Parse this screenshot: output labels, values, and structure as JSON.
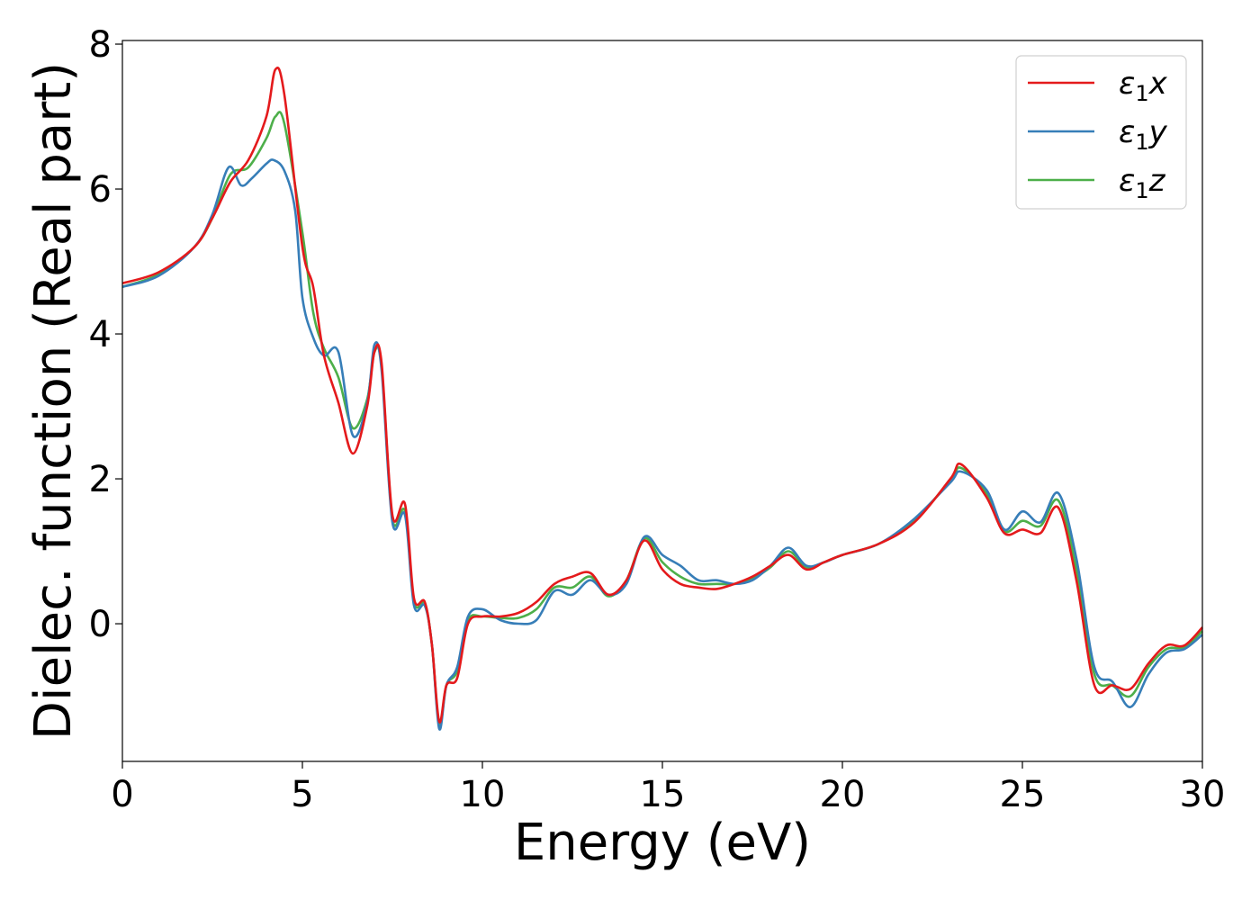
{
  "chart_data": {
    "type": "line",
    "xlabel": "Energy (eV)",
    "ylabel": "Dielec. function (Real part)",
    "xlim": [
      0,
      30
    ],
    "ylim": [
      -1.9,
      8.05
    ],
    "xticks": [
      0,
      5,
      10,
      15,
      20,
      25,
      30
    ],
    "yticks": [
      0,
      2,
      4,
      6,
      8
    ],
    "grid": false,
    "legend_position": "top-right",
    "series": [
      {
        "name": "ε₁x",
        "legend": {
          "base": "ε",
          "sub": "1",
          "tail": "x"
        },
        "color": "#e41a1c",
        "x": [
          0,
          1,
          2,
          2.5,
          3,
          3.5,
          4,
          4.25,
          4.5,
          5,
          5.3,
          5.6,
          6,
          6.4,
          6.8,
          7,
          7.2,
          7.5,
          7.85,
          8.1,
          8.4,
          8.6,
          8.8,
          9,
          9.3,
          9.6,
          10,
          10.5,
          11,
          11.5,
          12,
          12.5,
          13,
          13.5,
          14,
          14.5,
          15,
          15.5,
          16,
          16.5,
          17,
          17.5,
          18,
          18.5,
          19,
          19.5,
          20,
          21,
          22,
          23,
          23.3,
          24,
          24.5,
          25,
          25.5,
          26,
          26.5,
          27,
          27.5,
          28,
          28.5,
          29,
          29.5,
          30
        ],
        "y": [
          4.7,
          4.85,
          5.2,
          5.6,
          6.1,
          6.4,
          7.0,
          7.65,
          7.3,
          5.2,
          4.65,
          3.7,
          3.05,
          2.35,
          3.0,
          3.75,
          3.6,
          1.5,
          1.65,
          0.35,
          0.3,
          -0.3,
          -1.35,
          -0.85,
          -0.75,
          0.0,
          0.1,
          0.1,
          0.15,
          0.3,
          0.55,
          0.65,
          0.7,
          0.4,
          0.6,
          1.15,
          0.75,
          0.55,
          0.5,
          0.48,
          0.55,
          0.65,
          0.8,
          0.95,
          0.75,
          0.85,
          0.95,
          1.1,
          1.4,
          2.0,
          2.2,
          1.75,
          1.25,
          1.3,
          1.25,
          1.6,
          0.6,
          -0.85,
          -0.85,
          -0.9,
          -0.55,
          -0.3,
          -0.3,
          -0.05
        ]
      },
      {
        "name": "ε₁y",
        "legend": {
          "base": "ε",
          "sub": "1",
          "tail": "y"
        },
        "color": "#377eb8",
        "x": [
          0,
          1,
          2,
          2.5,
          2.95,
          3.3,
          3.6,
          4,
          4.2,
          4.5,
          4.8,
          5,
          5.3,
          5.6,
          6,
          6.4,
          6.8,
          7,
          7.2,
          7.5,
          7.85,
          8.1,
          8.4,
          8.6,
          8.8,
          9,
          9.3,
          9.6,
          10,
          10.5,
          11,
          11.5,
          12,
          12.5,
          13,
          13.5,
          14,
          14.5,
          15,
          15.5,
          16,
          16.5,
          17,
          17.5,
          18,
          18.5,
          19,
          19.5,
          20,
          21,
          22,
          23,
          23.3,
          24,
          24.5,
          25,
          25.5,
          26,
          26.5,
          27,
          27.5,
          28,
          28.5,
          29,
          29.5,
          30
        ],
        "y": [
          4.65,
          4.8,
          5.2,
          5.65,
          6.3,
          6.05,
          6.15,
          6.35,
          6.4,
          6.25,
          5.7,
          4.5,
          3.95,
          3.7,
          3.75,
          2.6,
          3.05,
          3.85,
          3.5,
          1.4,
          1.5,
          0.25,
          0.25,
          -0.3,
          -1.45,
          -0.85,
          -0.6,
          0.1,
          0.2,
          0.05,
          0.0,
          0.05,
          0.45,
          0.4,
          0.6,
          0.4,
          0.55,
          1.2,
          0.95,
          0.8,
          0.6,
          0.6,
          0.55,
          0.6,
          0.8,
          1.05,
          0.8,
          0.85,
          0.95,
          1.1,
          1.45,
          1.95,
          2.1,
          1.85,
          1.3,
          1.55,
          1.4,
          1.8,
          0.9,
          -0.6,
          -0.8,
          -1.15,
          -0.7,
          -0.4,
          -0.35,
          -0.15
        ]
      },
      {
        "name": "ε₁z",
        "legend": {
          "base": "ε",
          "sub": "1",
          "tail": "z"
        },
        "color": "#4daf4a",
        "x": [
          0,
          1,
          2,
          2.5,
          3,
          3.5,
          4,
          4.25,
          4.5,
          5,
          5.3,
          5.6,
          6,
          6.4,
          6.8,
          7,
          7.2,
          7.5,
          7.85,
          8.1,
          8.4,
          8.6,
          8.8,
          9,
          9.3,
          9.6,
          10,
          10.5,
          11,
          11.5,
          12,
          12.5,
          13,
          13.5,
          14,
          14.5,
          15,
          15.5,
          16,
          16.5,
          17,
          17.5,
          18,
          18.5,
          19,
          19.5,
          20,
          21,
          22,
          23,
          23.3,
          24,
          24.5,
          25,
          25.5,
          26,
          26.5,
          27,
          27.5,
          28,
          28.5,
          29,
          29.5,
          30
        ],
        "y": [
          4.65,
          4.82,
          5.2,
          5.6,
          6.2,
          6.3,
          6.7,
          7.0,
          6.9,
          5.4,
          4.3,
          3.8,
          3.4,
          2.7,
          3.1,
          3.75,
          3.55,
          1.45,
          1.55,
          0.3,
          0.28,
          -0.3,
          -1.4,
          -0.85,
          -0.65,
          0.05,
          0.1,
          0.08,
          0.08,
          0.2,
          0.5,
          0.5,
          0.65,
          0.38,
          0.6,
          1.18,
          0.85,
          0.65,
          0.55,
          0.55,
          0.55,
          0.62,
          0.78,
          1.0,
          0.78,
          0.85,
          0.95,
          1.1,
          1.42,
          1.98,
          2.15,
          1.8,
          1.28,
          1.42,
          1.35,
          1.7,
          0.75,
          -0.7,
          -0.85,
          -1.0,
          -0.6,
          -0.35,
          -0.32,
          -0.1
        ]
      }
    ]
  }
}
